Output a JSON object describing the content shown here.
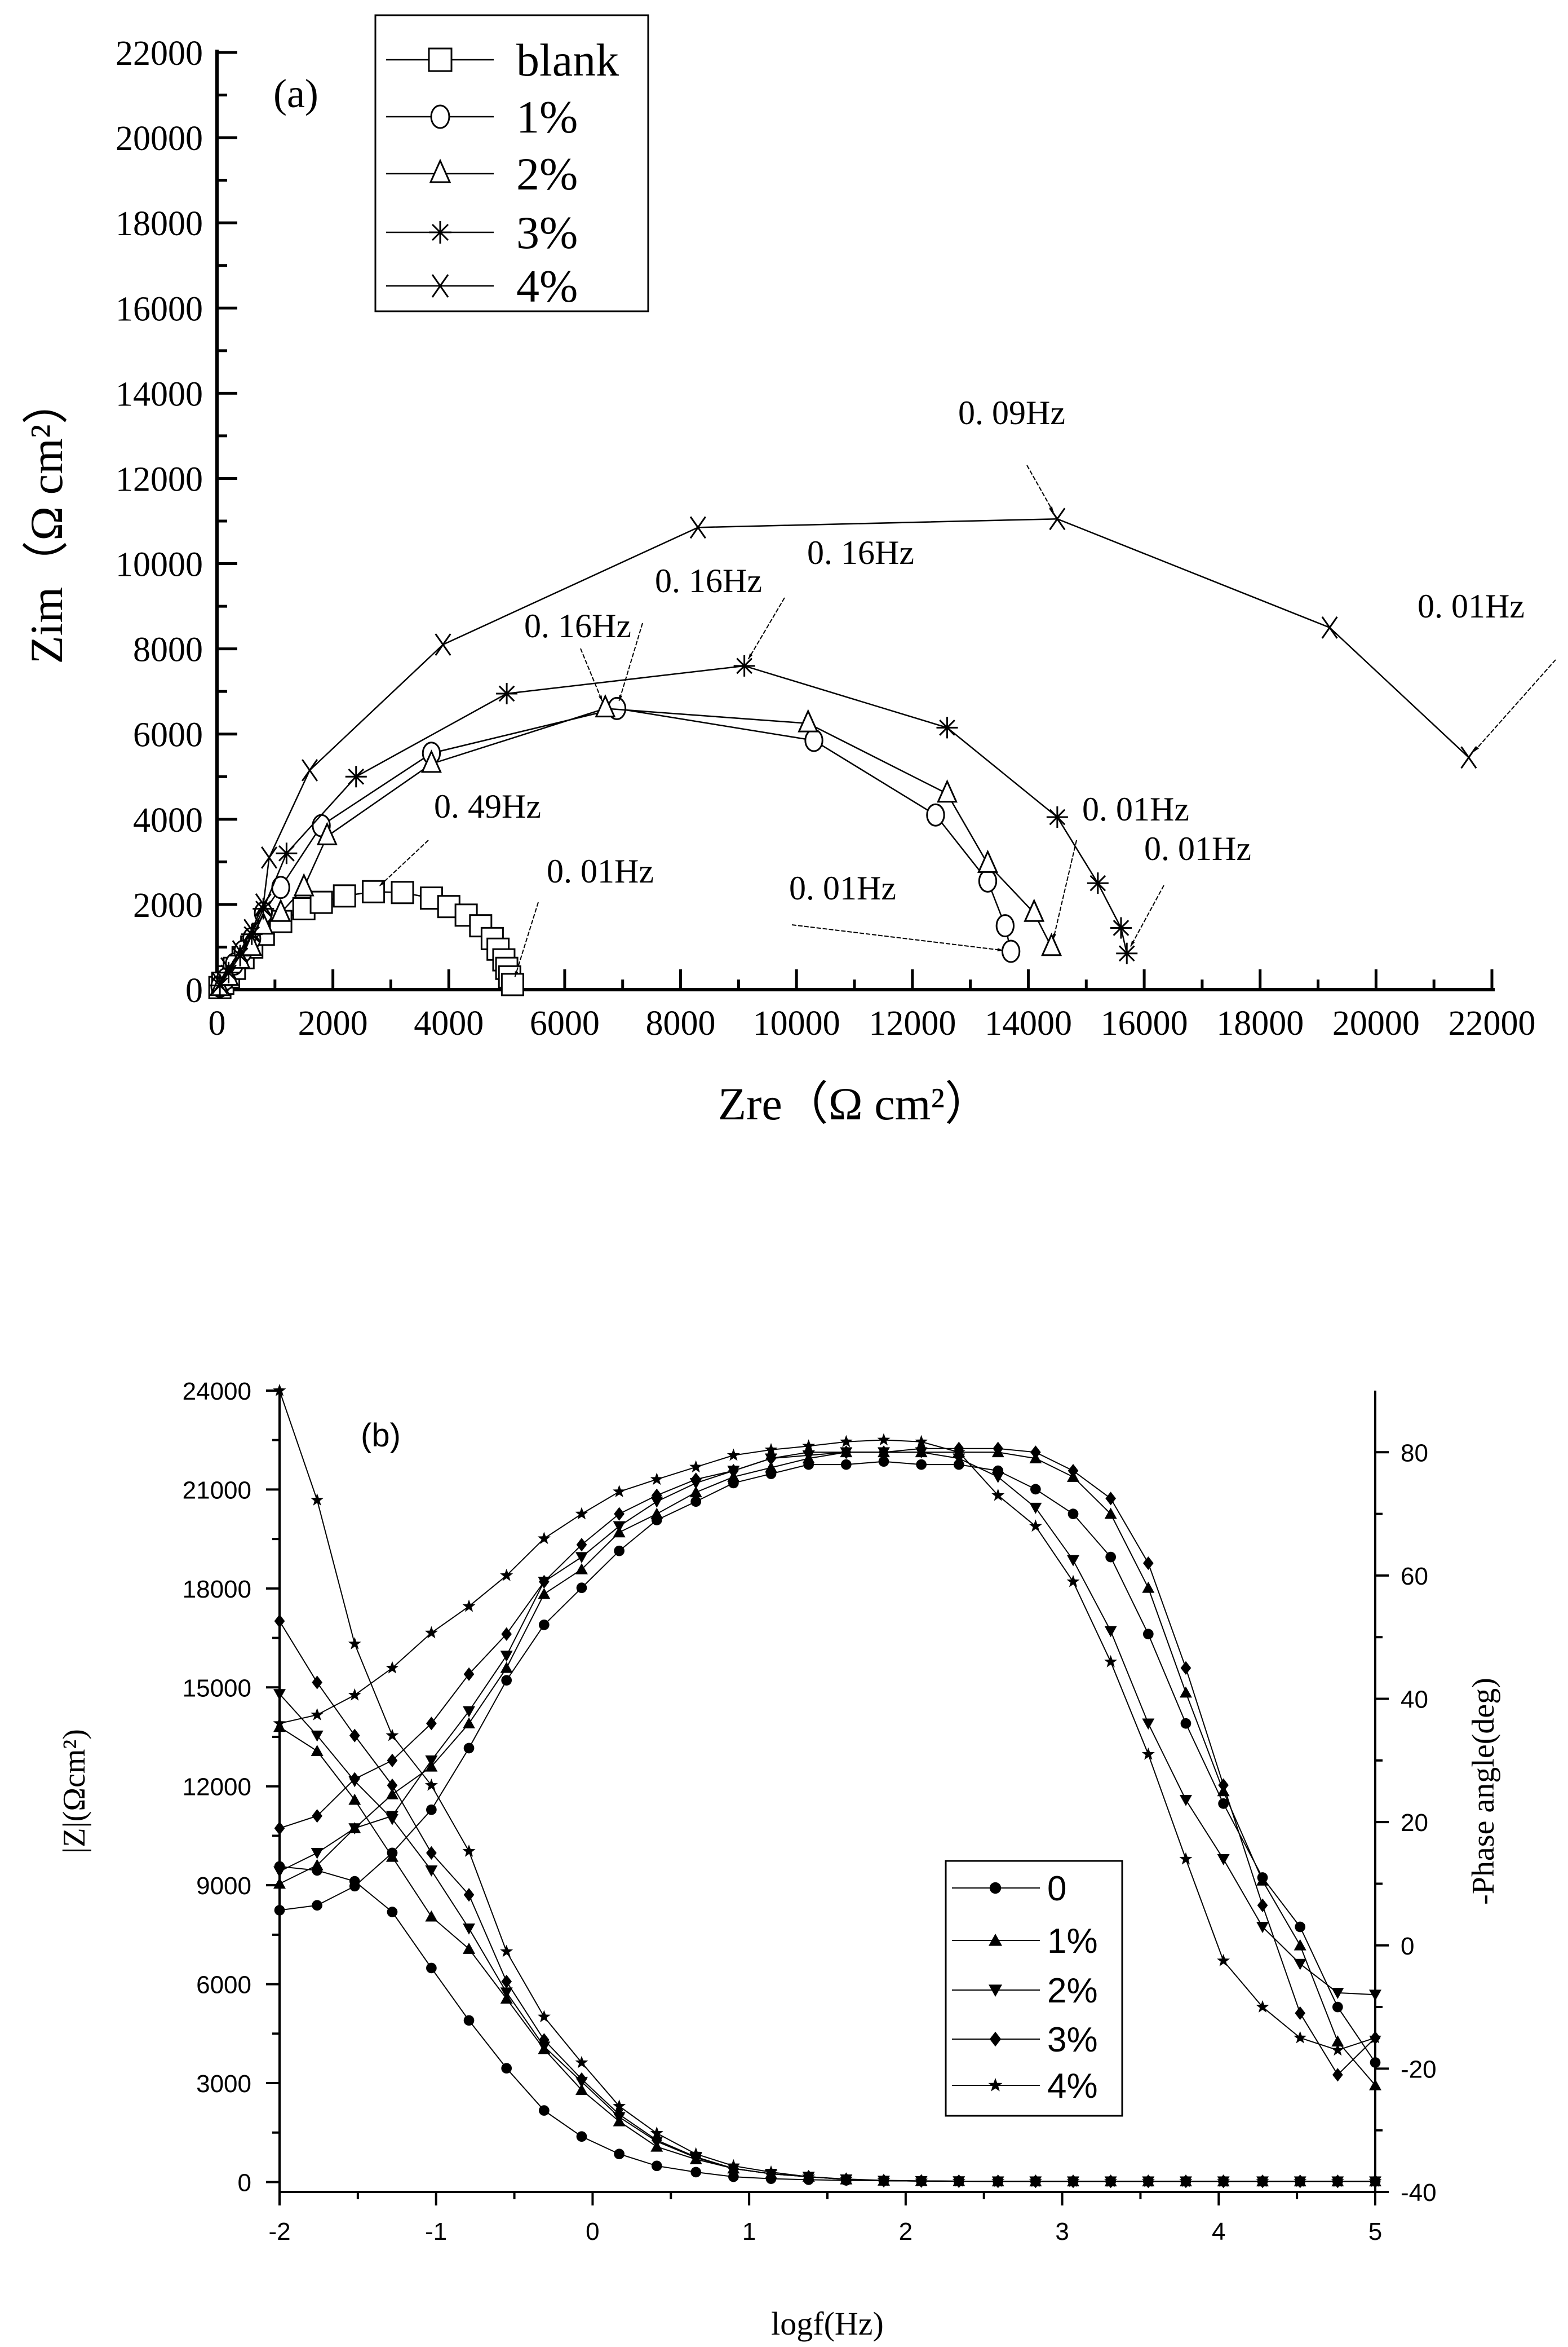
{
  "chart_data": [
    {
      "type": "scatter",
      "panel_label": "(a)",
      "xlabel": "Zre（Ω  cm²）",
      "ylabel": "Zim（Ω  cm²）",
      "xlim": [
        0,
        22000
      ],
      "ylim": [
        0,
        22000
      ],
      "xticks": [
        0,
        2000,
        4000,
        6000,
        8000,
        10000,
        12000,
        14000,
        16000,
        18000,
        20000,
        22000
      ],
      "yticks": [
        0,
        2000,
        4000,
        6000,
        8000,
        10000,
        12000,
        14000,
        16000,
        18000,
        20000,
        22000
      ],
      "grid": false,
      "legend": "top-left",
      "series": [
        {
          "name": "blank",
          "marker": "open-square",
          "points": [
            [
              50,
              50
            ],
            [
              100,
              150
            ],
            [
              200,
              300
            ],
            [
              300,
              500
            ],
            [
              450,
              750
            ],
            [
              600,
              1000
            ],
            [
              800,
              1300
            ],
            [
              1100,
              1600
            ],
            [
              1500,
              1900
            ],
            [
              1800,
              2050
            ],
            [
              2200,
              2200
            ],
            [
              2700,
              2300
            ],
            [
              3200,
              2280
            ],
            [
              3700,
              2150
            ],
            [
              4000,
              1950
            ],
            [
              4300,
              1750
            ],
            [
              4550,
              1500
            ],
            [
              4750,
              1200
            ],
            [
              4850,
              950
            ],
            [
              4950,
              700
            ],
            [
              5000,
              500
            ],
            [
              5050,
              300
            ],
            [
              5100,
              120
            ]
          ]
        },
        {
          "name": "1%",
          "marker": "open-circle",
          "points": [
            [
              50,
              80
            ],
            [
              150,
              250
            ],
            [
              300,
              600
            ],
            [
              450,
              900
            ],
            [
              600,
              1200
            ],
            [
              800,
              1800
            ],
            [
              1100,
              2400
            ],
            [
              1800,
              3850
            ],
            [
              3700,
              5550
            ],
            [
              6900,
              6600
            ],
            [
              10300,
              5850
            ],
            [
              12400,
              4100
            ],
            [
              13300,
              2550
            ],
            [
              13600,
              1500
            ],
            [
              13700,
              900
            ]
          ]
        },
        {
          "name": "2%",
          "marker": "open-triangle",
          "points": [
            [
              50,
              60
            ],
            [
              200,
              300
            ],
            [
              400,
              700
            ],
            [
              600,
              1000
            ],
            [
              800,
              1500
            ],
            [
              1100,
              1800
            ],
            [
              1500,
              2400
            ],
            [
              1900,
              3600
            ],
            [
              3700,
              5300
            ],
            [
              6700,
              6600
            ],
            [
              10200,
              6250
            ],
            [
              12600,
              4600
            ],
            [
              13300,
              2950
            ],
            [
              14100,
              1800
            ],
            [
              14400,
              1000
            ]
          ]
        },
        {
          "name": "3%",
          "marker": "asterisk",
          "points": [
            [
              50,
              100
            ],
            [
              200,
              400
            ],
            [
              400,
              800
            ],
            [
              600,
              1300
            ],
            [
              800,
              1900
            ],
            [
              1200,
              3200
            ],
            [
              2400,
              5000
            ],
            [
              5000,
              6950
            ],
            [
              9100,
              7600
            ],
            [
              12600,
              6150
            ],
            [
              14500,
              4050
            ],
            [
              15200,
              2500
            ],
            [
              15600,
              1450
            ],
            [
              15700,
              850
            ]
          ]
        },
        {
          "name": "4%",
          "marker": "x-cross",
          "points": [
            [
              50,
              150
            ],
            [
              200,
              500
            ],
            [
              400,
              900
            ],
            [
              600,
              1400
            ],
            [
              800,
              2000
            ],
            [
              900,
              3100
            ],
            [
              1600,
              5150
            ],
            [
              3900,
              8100
            ],
            [
              8300,
              10850
            ],
            [
              14500,
              11050
            ],
            [
              19200,
              8500
            ],
            [
              21600,
              5450
            ]
          ]
        }
      ],
      "annotations": [
        {
          "text": "0. 09Hz",
          "target": [
            14500,
            11050
          ]
        },
        {
          "text": "0. 16Hz",
          "target": [
            9100,
            7600
          ]
        },
        {
          "text": "0. 16Hz",
          "target": [
            6900,
            6600
          ]
        },
        {
          "text": "0. 16Hz",
          "target": [
            6700,
            6600
          ]
        },
        {
          "text": "0. 49Hz",
          "target": [
            2700,
            2300
          ]
        },
        {
          "text": "0. 01Hz",
          "target": [
            5100,
            120
          ]
        },
        {
          "text": "0. 01Hz",
          "target": [
            13700,
            900
          ]
        },
        {
          "text": "0. 01Hz",
          "target": [
            14400,
            1000
          ]
        },
        {
          "text": "0. 01Hz",
          "target": [
            15700,
            850
          ]
        },
        {
          "text": "0. 01Hz",
          "target": [
            21600,
            5450
          ]
        }
      ]
    },
    {
      "type": "line",
      "panel_label": "(b)",
      "xlabel": "logf(Hz)",
      "ylabel_left": "|Z|(Ωcm²)",
      "ylabel_right": "-Phase angle(deg)",
      "xlim": [
        -2,
        5
      ],
      "ylim_left": [
        -300,
        24000
      ],
      "ylim_right": [
        -40,
        90
      ],
      "xticks": [
        -2,
        -1,
        0,
        1,
        2,
        3,
        4,
        5
      ],
      "yticks_left": [
        0,
        3000,
        6000,
        9000,
        12000,
        15000,
        18000,
        21000,
        24000
      ],
      "yticks_right": [
        -40,
        -20,
        0,
        20,
        40,
        60,
        80
      ],
      "grid": false,
      "legend": "center-right",
      "x": [
        -2,
        -1.76,
        -1.52,
        -1.28,
        -1.03,
        -0.79,
        -0.55,
        -0.31,
        -0.07,
        0.17,
        0.41,
        0.66,
        0.9,
        1.14,
        1.38,
        1.62,
        1.86,
        2.1,
        2.34,
        2.59,
        2.83,
        3.07,
        3.31,
        3.55,
        3.79,
        4.03,
        4.28,
        4.52,
        4.76,
        5
      ],
      "series": [
        {
          "name": "0",
          "marker": "circle",
          "modulus": [
            9570,
            9450,
            9120,
            8190,
            6490,
            4900,
            3450,
            2170,
            1380,
            850,
            490,
            300,
            160,
            100,
            70,
            50,
            40,
            30,
            25,
            20,
            20,
            20,
            20,
            20,
            20,
            20,
            20,
            20,
            20,
            20
          ],
          "phase": [
            5.7,
            6.5,
            9.6,
            15,
            22,
            32,
            43,
            52,
            58,
            64,
            69,
            72,
            75,
            76.5,
            78,
            78,
            78.5,
            78,
            78,
            77,
            74,
            70,
            63,
            50.5,
            36,
            23,
            11,
            3,
            -10,
            -19
          ]
        },
        {
          "name": "1%",
          "marker": "triangle-up",
          "modulus": [
            13800,
            13070,
            11590,
            9860,
            8050,
            7070,
            5560,
            4030,
            2790,
            1840,
            1070,
            690,
            410,
            250,
            160,
            80,
            40,
            30,
            25,
            20,
            20,
            20,
            20,
            20,
            20,
            20,
            20,
            20,
            20,
            20
          ],
          "phase": [
            10,
            13,
            19,
            24.5,
            29,
            36,
            45,
            57,
            61,
            67,
            70,
            73.5,
            76,
            77.5,
            79,
            80,
            80,
            80,
            80,
            80,
            79,
            76,
            70,
            58,
            41,
            25,
            10.5,
            0,
            -15.6,
            -22.7
          ]
        },
        {
          "name": "2%",
          "marker": "triangle-down",
          "modulus": [
            14800,
            13540,
            12160,
            11010,
            9450,
            7690,
            5750,
            4110,
            3040,
            1970,
            1230,
            740,
            410,
            250,
            160,
            80,
            40,
            30,
            25,
            20,
            20,
            20,
            20,
            20,
            20,
            20,
            20,
            20,
            20,
            20
          ],
          "phase": [
            12,
            15,
            19,
            21,
            30,
            38,
            47,
            59,
            63,
            68,
            72,
            75,
            77,
            79,
            79.5,
            80,
            80,
            80,
            79,
            76,
            71,
            62.5,
            51,
            36,
            23.6,
            14,
            3,
            -3,
            -7.7,
            -8
          ]
        },
        {
          "name": "3%",
          "marker": "diamond",
          "modulus": [
            17010,
            15150,
            13540,
            12030,
            9980,
            8710,
            6080,
            4310,
            3120,
            2050,
            1270,
            760,
            410,
            250,
            160,
            80,
            40,
            30,
            25,
            20,
            20,
            20,
            20,
            20,
            20,
            20,
            20,
            20,
            20,
            20
          ],
          "phase": [
            19,
            21,
            27,
            30,
            36,
            44,
            50.5,
            59,
            65,
            70,
            73,
            75.6,
            77,
            79,
            80,
            80,
            80,
            80.6,
            80.6,
            80.6,
            80,
            77,
            72.5,
            62,
            45,
            26,
            6.5,
            -11,
            -21,
            -15
          ]
        },
        {
          "name": "4%",
          "marker": "star",
          "modulus": [
            24000,
            20680,
            16320,
            13540,
            12030,
            10030,
            6990,
            5010,
            3620,
            2300,
            1480,
            850,
            490,
            300,
            160,
            90,
            50,
            35,
            25,
            20,
            20,
            20,
            20,
            20,
            20,
            20,
            20,
            20,
            20,
            20
          ],
          "phase": [
            36,
            37.4,
            40.6,
            45,
            50.7,
            55,
            60,
            66,
            70,
            73.6,
            75.6,
            77.6,
            79.5,
            80.4,
            81,
            81.7,
            82,
            81.7,
            80,
            73,
            68,
            59,
            46,
            31,
            14,
            -2.5,
            -10,
            -15,
            -17,
            -15
          ]
        }
      ]
    }
  ]
}
